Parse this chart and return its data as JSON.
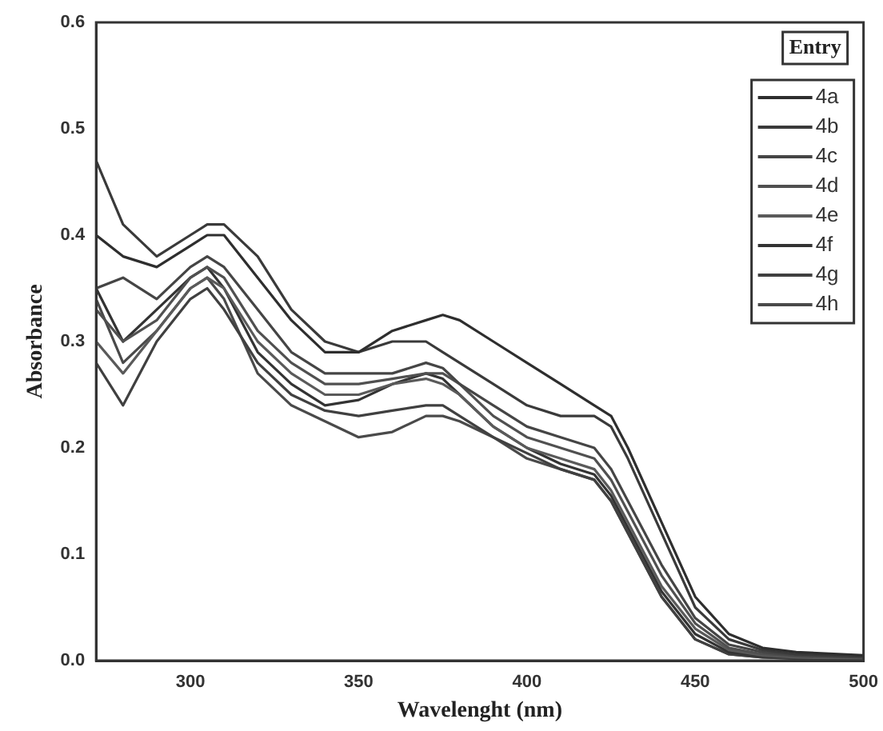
{
  "chart_data": {
    "type": "line",
    "xlabel": "Wavelenght (nm)",
    "ylabel": "Absorbance",
    "legend_title": "Entry",
    "xlim": [
      272,
      500
    ],
    "xticks": [
      300,
      350,
      400,
      450,
      500
    ],
    "ylim": [
      0,
      0.6
    ],
    "yticks": [
      {
        "value": 0,
        "label": "0.0"
      },
      0.1,
      0.2,
      0.3,
      0.4,
      0.5,
      0.6
    ],
    "grid": false,
    "legend": "top right",
    "marker": "none",
    "line_style": "solid",
    "x": [
      272,
      280,
      290,
      300,
      305,
      310,
      320,
      330,
      340,
      350,
      360,
      370,
      375,
      380,
      390,
      400,
      410,
      420,
      425,
      430,
      440,
      450,
      460,
      470,
      480,
      500
    ],
    "series": [
      {
        "name": "4a",
        "color": "#2e2e2e",
        "values": [
          0.4,
          0.38,
          0.37,
          0.39,
          0.4,
          0.4,
          0.36,
          0.32,
          0.29,
          0.29,
          0.31,
          0.32,
          0.325,
          0.32,
          0.3,
          0.28,
          0.26,
          0.24,
          0.23,
          0.2,
          0.13,
          0.06,
          0.025,
          0.012,
          0.008,
          0.005
        ]
      },
      {
        "name": "4b",
        "color": "#3a3a3a",
        "values": [
          0.47,
          0.41,
          0.38,
          0.4,
          0.41,
          0.41,
          0.38,
          0.33,
          0.3,
          0.29,
          0.3,
          0.3,
          0.29,
          0.28,
          0.26,
          0.24,
          0.23,
          0.23,
          0.22,
          0.19,
          0.12,
          0.05,
          0.02,
          0.01,
          0.006,
          0.004
        ]
      },
      {
        "name": "4c",
        "color": "#454545",
        "values": [
          0.35,
          0.36,
          0.34,
          0.37,
          0.38,
          0.37,
          0.33,
          0.29,
          0.27,
          0.27,
          0.27,
          0.28,
          0.275,
          0.26,
          0.24,
          0.22,
          0.21,
          0.2,
          0.18,
          0.15,
          0.09,
          0.04,
          0.015,
          0.008,
          0.005,
          0.003
        ]
      },
      {
        "name": "4d",
        "color": "#505050",
        "values": [
          0.33,
          0.3,
          0.32,
          0.36,
          0.37,
          0.36,
          0.31,
          0.28,
          0.26,
          0.26,
          0.265,
          0.27,
          0.27,
          0.26,
          0.23,
          0.21,
          0.2,
          0.19,
          0.17,
          0.14,
          0.08,
          0.035,
          0.012,
          0.006,
          0.004,
          0.003
        ]
      },
      {
        "name": "4e",
        "color": "#5a5a5a",
        "values": [
          0.3,
          0.27,
          0.31,
          0.35,
          0.36,
          0.35,
          0.3,
          0.27,
          0.25,
          0.25,
          0.26,
          0.265,
          0.26,
          0.25,
          0.22,
          0.2,
          0.19,
          0.18,
          0.16,
          0.13,
          0.07,
          0.03,
          0.01,
          0.005,
          0.003,
          0.002
        ]
      },
      {
        "name": "4f",
        "color": "#333333",
        "values": [
          0.35,
          0.3,
          0.33,
          0.36,
          0.37,
          0.35,
          0.29,
          0.26,
          0.24,
          0.245,
          0.26,
          0.27,
          0.265,
          0.25,
          0.22,
          0.2,
          0.185,
          0.175,
          0.155,
          0.125,
          0.065,
          0.025,
          0.008,
          0.004,
          0.003,
          0.002
        ]
      },
      {
        "name": "4g",
        "color": "#404040",
        "values": [
          0.28,
          0.24,
          0.3,
          0.34,
          0.35,
          0.33,
          0.28,
          0.25,
          0.235,
          0.23,
          0.235,
          0.24,
          0.24,
          0.23,
          0.21,
          0.195,
          0.18,
          0.17,
          0.15,
          0.12,
          0.06,
          0.02,
          0.006,
          0.003,
          0.002,
          0.002
        ]
      },
      {
        "name": "4h",
        "color": "#4a4a4a",
        "values": [
          0.34,
          0.28,
          0.31,
          0.35,
          0.36,
          0.34,
          0.27,
          0.24,
          0.225,
          0.21,
          0.215,
          0.23,
          0.23,
          0.225,
          0.21,
          0.19,
          0.18,
          0.17,
          0.15,
          0.12,
          0.06,
          0.02,
          0.006,
          0.003,
          0.002,
          0.001
        ]
      }
    ]
  }
}
